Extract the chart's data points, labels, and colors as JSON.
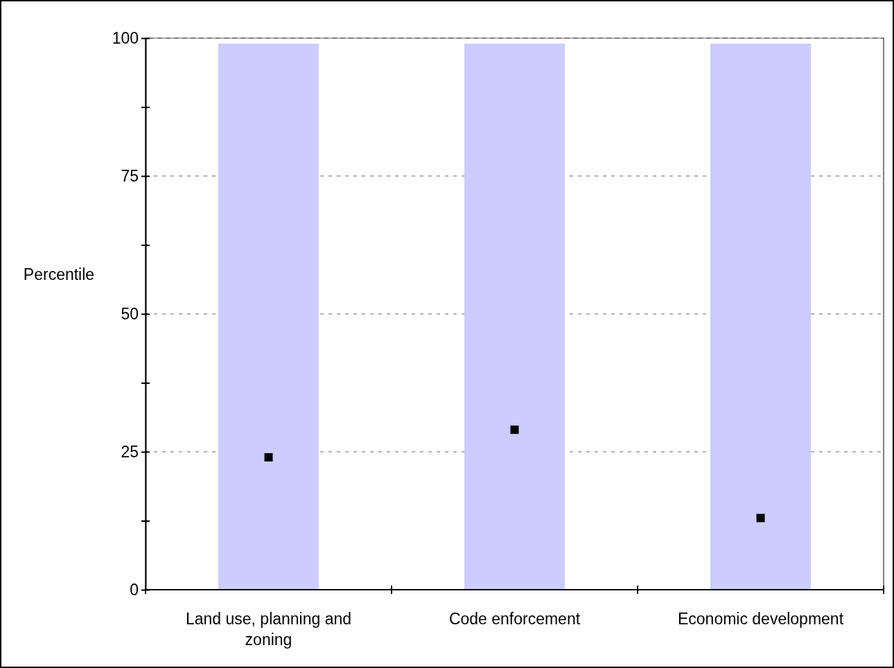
{
  "chart_data": {
    "type": "bar",
    "ylabel": "Percentile",
    "categories": [
      "Land use, planning and zoning",
      "Code enforcement",
      "Economic development"
    ],
    "series": [
      {
        "color": "#ccccff",
        "values": [
          99,
          99,
          99
        ]
      },
      {
        "type": "scatter",
        "color": "#000000",
        "marker": "square",
        "values": [
          24,
          29,
          13
        ]
      }
    ],
    "ylim": [
      0,
      100
    ],
    "yticks": [
      0,
      {
        "value": 12.5,
        "label": null
      },
      25,
      {
        "value": 37.5,
        "label": null
      },
      50,
      {
        "value": 62.5,
        "label": null
      },
      75,
      {
        "value": 87.5,
        "label": null
      },
      100
    ],
    "grid": "y"
  }
}
